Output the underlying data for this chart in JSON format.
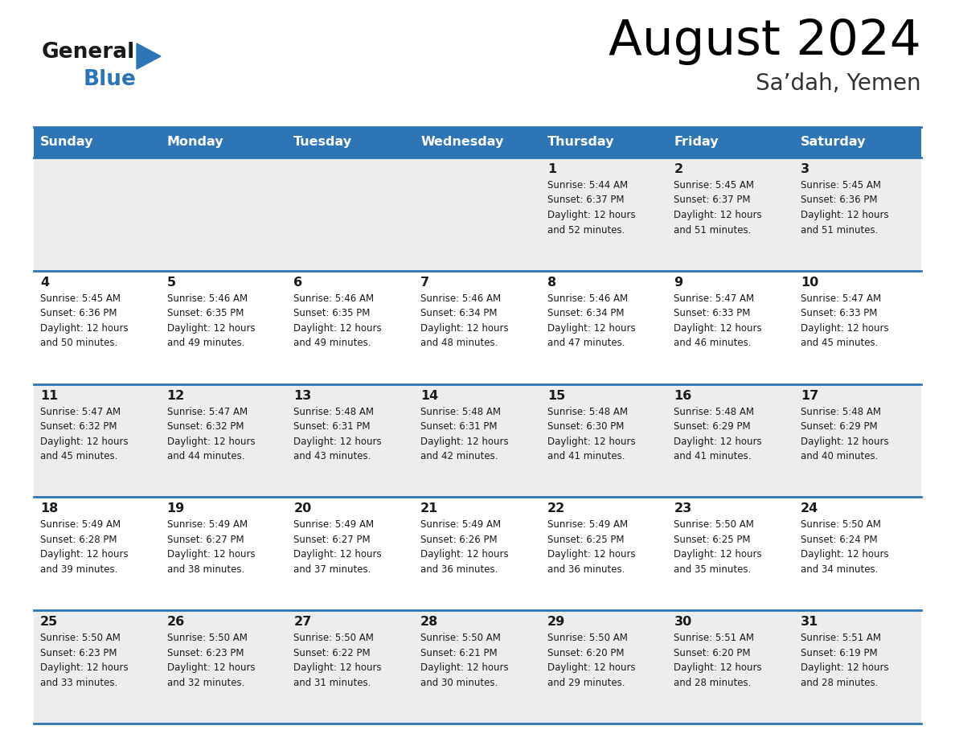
{
  "title": "August 2024",
  "subtitle": "Sa’dah, Yemen",
  "days_of_week": [
    "Sunday",
    "Monday",
    "Tuesday",
    "Wednesday",
    "Thursday",
    "Friday",
    "Saturday"
  ],
  "header_bg": "#2E75B6",
  "header_text": "#FFFFFF",
  "cell_bg_light": "#EDEDED",
  "cell_bg_white": "#FFFFFF",
  "day_number_color": "#1A1A1A",
  "info_text_color": "#1A1A1A",
  "grid_line_color": "#2E75B6",
  "logo_general_color": "#1A1A1A",
  "logo_blue_color": "#2E75B6",
  "logo_triangle_color": "#2E75B6",
  "calendar_data": [
    [
      null,
      null,
      null,
      null,
      {
        "day": 1,
        "sunrise": "5:44 AM",
        "sunset": "6:37 PM",
        "daylight": "12 hours and 52 minutes"
      },
      {
        "day": 2,
        "sunrise": "5:45 AM",
        "sunset": "6:37 PM",
        "daylight": "12 hours and 51 minutes"
      },
      {
        "day": 3,
        "sunrise": "5:45 AM",
        "sunset": "6:36 PM",
        "daylight": "12 hours and 51 minutes"
      }
    ],
    [
      {
        "day": 4,
        "sunrise": "5:45 AM",
        "sunset": "6:36 PM",
        "daylight": "12 hours and 50 minutes"
      },
      {
        "day": 5,
        "sunrise": "5:46 AM",
        "sunset": "6:35 PM",
        "daylight": "12 hours and 49 minutes"
      },
      {
        "day": 6,
        "sunrise": "5:46 AM",
        "sunset": "6:35 PM",
        "daylight": "12 hours and 49 minutes"
      },
      {
        "day": 7,
        "sunrise": "5:46 AM",
        "sunset": "6:34 PM",
        "daylight": "12 hours and 48 minutes"
      },
      {
        "day": 8,
        "sunrise": "5:46 AM",
        "sunset": "6:34 PM",
        "daylight": "12 hours and 47 minutes"
      },
      {
        "day": 9,
        "sunrise": "5:47 AM",
        "sunset": "6:33 PM",
        "daylight": "12 hours and 46 minutes"
      },
      {
        "day": 10,
        "sunrise": "5:47 AM",
        "sunset": "6:33 PM",
        "daylight": "12 hours and 45 minutes"
      }
    ],
    [
      {
        "day": 11,
        "sunrise": "5:47 AM",
        "sunset": "6:32 PM",
        "daylight": "12 hours and 45 minutes"
      },
      {
        "day": 12,
        "sunrise": "5:47 AM",
        "sunset": "6:32 PM",
        "daylight": "12 hours and 44 minutes"
      },
      {
        "day": 13,
        "sunrise": "5:48 AM",
        "sunset": "6:31 PM",
        "daylight": "12 hours and 43 minutes"
      },
      {
        "day": 14,
        "sunrise": "5:48 AM",
        "sunset": "6:31 PM",
        "daylight": "12 hours and 42 minutes"
      },
      {
        "day": 15,
        "sunrise": "5:48 AM",
        "sunset": "6:30 PM",
        "daylight": "12 hours and 41 minutes"
      },
      {
        "day": 16,
        "sunrise": "5:48 AM",
        "sunset": "6:29 PM",
        "daylight": "12 hours and 41 minutes"
      },
      {
        "day": 17,
        "sunrise": "5:48 AM",
        "sunset": "6:29 PM",
        "daylight": "12 hours and 40 minutes"
      }
    ],
    [
      {
        "day": 18,
        "sunrise": "5:49 AM",
        "sunset": "6:28 PM",
        "daylight": "12 hours and 39 minutes"
      },
      {
        "day": 19,
        "sunrise": "5:49 AM",
        "sunset": "6:27 PM",
        "daylight": "12 hours and 38 minutes"
      },
      {
        "day": 20,
        "sunrise": "5:49 AM",
        "sunset": "6:27 PM",
        "daylight": "12 hours and 37 minutes"
      },
      {
        "day": 21,
        "sunrise": "5:49 AM",
        "sunset": "6:26 PM",
        "daylight": "12 hours and 36 minutes"
      },
      {
        "day": 22,
        "sunrise": "5:49 AM",
        "sunset": "6:25 PM",
        "daylight": "12 hours and 36 minutes"
      },
      {
        "day": 23,
        "sunrise": "5:50 AM",
        "sunset": "6:25 PM",
        "daylight": "12 hours and 35 minutes"
      },
      {
        "day": 24,
        "sunrise": "5:50 AM",
        "sunset": "6:24 PM",
        "daylight": "12 hours and 34 minutes"
      }
    ],
    [
      {
        "day": 25,
        "sunrise": "5:50 AM",
        "sunset": "6:23 PM",
        "daylight": "12 hours and 33 minutes"
      },
      {
        "day": 26,
        "sunrise": "5:50 AM",
        "sunset": "6:23 PM",
        "daylight": "12 hours and 32 minutes"
      },
      {
        "day": 27,
        "sunrise": "5:50 AM",
        "sunset": "6:22 PM",
        "daylight": "12 hours and 31 minutes"
      },
      {
        "day": 28,
        "sunrise": "5:50 AM",
        "sunset": "6:21 PM",
        "daylight": "12 hours and 30 minutes"
      },
      {
        "day": 29,
        "sunrise": "5:50 AM",
        "sunset": "6:20 PM",
        "daylight": "12 hours and 29 minutes"
      },
      {
        "day": 30,
        "sunrise": "5:51 AM",
        "sunset": "6:20 PM",
        "daylight": "12 hours and 28 minutes"
      },
      {
        "day": 31,
        "sunrise": "5:51 AM",
        "sunset": "6:19 PM",
        "daylight": "12 hours and 28 minutes"
      }
    ]
  ]
}
